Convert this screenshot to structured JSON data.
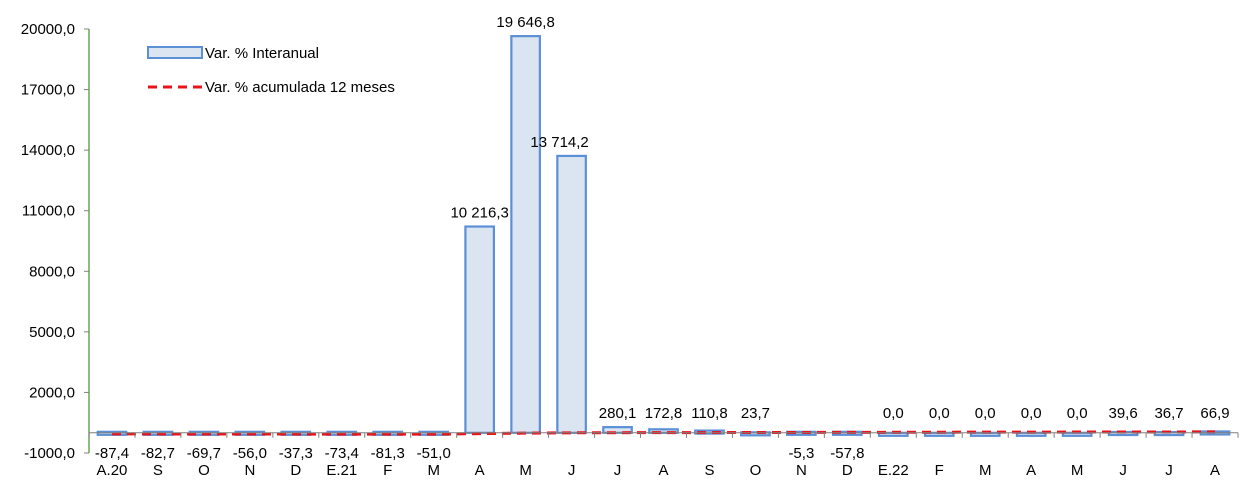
{
  "chart_data": {
    "type": "bar",
    "title": "",
    "xlabel": "",
    "ylabel": "",
    "ylim": [
      -1000,
      20000
    ],
    "y_ticks": [
      -1000,
      2000,
      5000,
      8000,
      11000,
      14000,
      17000,
      20000
    ],
    "y_tick_labels": [
      "-1000,0",
      "2000,0",
      "5000,0",
      "8000,0",
      "11000,0",
      "14000,0",
      "17000,0",
      "20000,0"
    ],
    "grid": false,
    "legend_position": "top-left",
    "categories": [
      "A.20",
      "S",
      "O",
      "N",
      "D",
      "E.21",
      "F",
      "M",
      "A",
      "M",
      "J",
      "J",
      "A",
      "S",
      "O",
      "N",
      "D",
      "E.22",
      "F",
      "M",
      "A",
      "M",
      "J",
      "J",
      "A"
    ],
    "series": [
      {
        "name": "Var. % Interanual",
        "type": "bar",
        "color": "#5b8fd6",
        "fill": "#dbe5f1",
        "values": [
          -87.4,
          -82.7,
          -69.7,
          -56.0,
          -37.3,
          -73.4,
          -81.3,
          -51.0,
          10216.3,
          19646.8,
          13714.2,
          280.1,
          172.8,
          110.8,
          23.7,
          -5.3,
          -57.8,
          0.0,
          0.0,
          0.0,
          0.0,
          0.0,
          39.6,
          36.7,
          66.9
        ],
        "labels": [
          "-87,4",
          "-82,7",
          "-69,7",
          "-56,0",
          "-37,3",
          "-73,4",
          "-81,3",
          "-51,0",
          "10 216,3",
          "19 646,8",
          "13 714,2",
          "280,1",
          "172,8",
          "110,8",
          "23,7",
          "-5,3",
          "-57,8",
          "0,0",
          "0,0",
          "0,0",
          "0,0",
          "0,0",
          "39,6",
          "36,7",
          "66,9"
        ]
      },
      {
        "name": "Var. % acumulada 12 meses",
        "type": "line",
        "style": "dashed",
        "color": "#e8141b",
        "values": [
          -50,
          -55,
          -60,
          -62,
          -62,
          -65,
          -68,
          -66,
          -40,
          -15,
          0,
          5,
          10,
          12,
          15,
          18,
          20,
          25,
          30,
          32,
          35,
          38,
          40,
          42,
          45
        ]
      }
    ]
  }
}
